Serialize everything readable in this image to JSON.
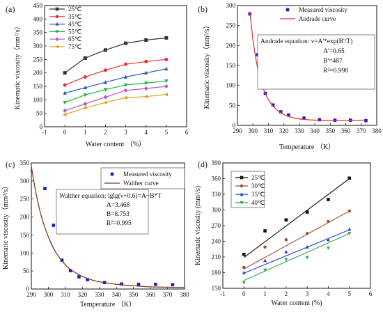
{
  "panels": [
    {
      "letter": "(a)",
      "chart_data": {
        "type": "line",
        "xlabel": "Water content （%）",
        "ylabel": "Kinematic viscosity（mm²/s）",
        "xlim": [
          -1,
          6
        ],
        "ylim": [
          0,
          450
        ],
        "xticks": [
          -1,
          0,
          1,
          2,
          3,
          4,
          5,
          6
        ],
        "yticks": [
          0,
          50,
          100,
          150,
          200,
          250,
          300,
          350,
          400,
          450
        ],
        "legend_position": "top-left",
        "x": [
          0,
          1,
          2,
          3,
          4,
          5
        ],
        "series": [
          {
            "name": "25℃",
            "color": "#333333",
            "marker": "square",
            "values": [
              200,
              255,
              285,
              310,
              322,
              330
            ]
          },
          {
            "name": "35℃",
            "color": "#e8312f",
            "marker": "circle",
            "values": [
              155,
              185,
              210,
              232,
              242,
              250
            ]
          },
          {
            "name": "45℃",
            "color": "#1f5fb5",
            "marker": "triangle",
            "values": [
              125,
              145,
              165,
              185,
              200,
              215
            ]
          },
          {
            "name": "55℃",
            "color": "#26b24b",
            "marker": "triangle-down",
            "values": [
              90,
              118,
              138,
              155,
              162,
              170
            ]
          },
          {
            "name": "65℃",
            "color": "#b455cc",
            "marker": "diamond",
            "values": [
              60,
              85,
              110,
              135,
              142,
              150
            ]
          },
          {
            "name": "75℃",
            "color": "#d9a21b",
            "marker": "triangle-left",
            "values": [
              45,
              70,
              90,
              108,
              112,
              120
            ]
          }
        ]
      }
    },
    {
      "letter": "(b)",
      "chart_data": {
        "type": "scatter",
        "xlabel": "Temperature （K）",
        "ylabel": "Kinematic viscosity（mm²/s）",
        "xlim": [
          290,
          380
        ],
        "ylim": [
          0,
          300
        ],
        "xticks": [
          290,
          300,
          310,
          320,
          330,
          340,
          350,
          360,
          370,
          380
        ],
        "yticks": [
          0,
          50,
          100,
          150,
          200,
          250,
          300
        ],
        "legend_position": "top-right",
        "series": [
          {
            "name": "Measured viscosity",
            "color": "#1a1ad4",
            "marker": "square",
            "x": [
              298,
              303,
              308,
              313,
              318,
              323,
              333,
              343,
              353,
              363,
              373
            ],
            "values": [
              279,
              177,
              80,
              51,
              34,
              26,
              18,
              14,
              13,
              13,
              12
            ]
          },
          {
            "name": "Andrade curve",
            "color": "#e03b3b",
            "type": "line",
            "x": [
              298,
              300,
              302,
              304,
              306,
              308,
              310,
              313,
              316,
              320,
              325,
              330,
              340,
              350,
              360,
              370,
              373
            ],
            "values": [
              285,
              215,
              165,
              127,
              100,
              80,
              64,
              48,
              37,
              27,
              20,
              16,
              13,
              12,
              12,
              13,
              13
            ]
          }
        ],
        "equation": {
          "title": "Andrade equation:",
          "formula": "ν=A'*exp(B'/T)",
          "lines": [
            "A'=0.65",
            "B'=487",
            "R²=0.998"
          ]
        }
      }
    },
    {
      "letter": "(c)",
      "chart_data": {
        "type": "scatter",
        "xlabel": "Temperature （K）",
        "ylabel": "Kinematic viscosity（mm²/s）",
        "xlim": [
          290,
          380
        ],
        "ylim": [
          0,
          350
        ],
        "xticks": [
          290,
          300,
          310,
          320,
          330,
          340,
          350,
          360,
          370,
          380
        ],
        "yticks": [
          0,
          50,
          100,
          150,
          200,
          250,
          300,
          350
        ],
        "legend_position": "top-right",
        "series": [
          {
            "name": "Measured viscosity",
            "color": "#1a1ad4",
            "marker": "square",
            "x": [
              298,
              303,
              308,
              313,
              318,
              323,
              333,
              343,
              353,
              363,
              373
            ],
            "values": [
              279,
              177,
              80,
              51,
              34,
              26,
              18,
              14,
              13,
              13,
              12
            ]
          },
          {
            "name": "Walther curve",
            "color": "#7a3a1a",
            "type": "line",
            "x": [
              290,
              293,
              296,
              300,
              304,
              308,
              312,
              316,
              320,
              325,
              330,
              340,
              350,
              360,
              370,
              380
            ],
            "values": [
              340,
              260,
              200,
              145,
              105,
              78,
              58,
              45,
              35,
              26,
              20,
              13,
              9,
              6,
              5,
              4
            ]
          }
        ],
        "equation": {
          "title": "Walther equation:",
          "formula": "lglg(ν+0.6)=A−B*T",
          "lines": [
            "A=3.468",
            "B=8.753",
            "R²=0.995"
          ]
        }
      }
    },
    {
      "letter": "(d)",
      "chart_data": {
        "type": "scatter",
        "xlabel": "Water content (%)",
        "ylabel": "Kinematic viscosity (mm²/s)",
        "xlim": [
          -1,
          6
        ],
        "ylim": [
          150,
          390
        ],
        "xticks": [
          -1,
          0,
          1,
          2,
          3,
          4,
          5,
          6
        ],
        "yticks": [
          150,
          180,
          210,
          240,
          270,
          300,
          330,
          360,
          390
        ],
        "legend_position": "top-left",
        "x": [
          0,
          1,
          2,
          3,
          4,
          5
        ],
        "series": [
          {
            "name": "25℃",
            "color": "#111111",
            "marker": "square",
            "values": [
              215,
              260,
              281,
              296,
              320,
              361
            ],
            "fit": [
              209,
              239,
              269,
              300,
              330,
              360
            ]
          },
          {
            "name": "30℃",
            "color": "#a0522d",
            "marker": "circle",
            "values": [
              190,
              229,
              243,
              255,
              278,
              298
            ],
            "fit": [
              187,
              209,
              231,
              253,
              276,
              298
            ]
          },
          {
            "name": "35℃",
            "color": "#2440d6",
            "marker": "triangle",
            "values": [
              180,
              203,
              220,
              229,
              243,
              263
            ],
            "fit": [
              179,
              196,
              212,
              229,
              246,
              262
            ]
          },
          {
            "name": "40℃",
            "color": "#2ba84a",
            "marker": "triangle-down",
            "values": [
              161,
              185,
              205,
              209,
              227,
              255
            ],
            "fit": [
              165,
              183,
              201,
              219,
              237,
              255
            ]
          }
        ]
      }
    }
  ]
}
